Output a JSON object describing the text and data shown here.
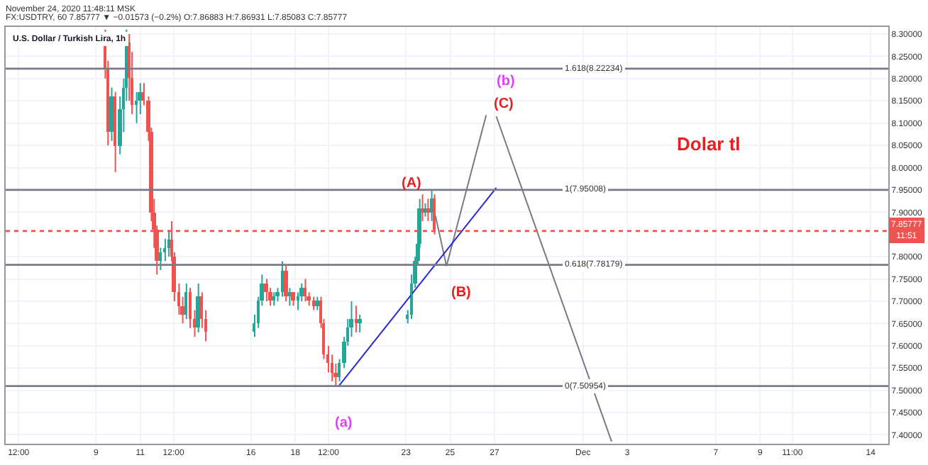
{
  "chart_data": {
    "type": "candlestick",
    "title": "U.S. Dollar / Turkish Lira, 1h",
    "x": [
      "2020-11-09T10:00",
      "2020-11-09T13:00",
      "2020-11-09T17:00",
      "2020-11-09T21:00",
      "2020-11-10T02:00",
      "2020-11-10T06:00",
      "2020-11-10T09:00",
      "2020-11-10T12:00",
      "2020-11-10T15:00",
      "2020-11-10T20:00",
      "2020-11-11T00:00",
      "2020-11-11T04:00",
      "2020-11-11T09:00",
      "2020-11-11T12:00",
      "2020-11-11T15:00",
      "2020-11-11T18:00",
      "2020-11-11T22:00",
      "2020-11-12T03:00",
      "2020-11-12T07:00",
      "2020-11-12T10:00",
      "2020-11-12T13:00",
      "2020-11-12T18:00",
      "2020-11-12T22:00",
      "2020-11-13T02:00",
      "2020-11-13T06:00",
      "2020-11-13T11:00",
      "2020-11-13T15:00",
      "2020-11-13T19:00",
      "2020-11-13T23:00",
      "2020-11-16T04:00",
      "2020-11-16T08:00",
      "2020-11-16T12:00",
      "2020-11-16T17:00",
      "2020-11-16T21:00",
      "2020-11-17T01:00",
      "2020-11-17T05:00",
      "2020-11-17T10:00",
      "2020-11-17T14:00",
      "2020-11-17T18:00",
      "2020-11-17T22:00",
      "2020-11-18T03:00",
      "2020-11-18T07:00",
      "2020-11-18T11:00",
      "2020-11-18T15:00",
      "2020-11-18T20:00",
      "2020-11-19T00:00",
      "2020-11-19T04:00",
      "2020-11-19T07:00",
      "2020-11-19T12:00",
      "2020-11-19T16:00",
      "2020-11-19T20:00",
      "2020-11-20T00:00",
      "2020-11-20T05:00",
      "2020-11-20T09:00",
      "2020-11-20T13:00",
      "2020-11-20T18:00",
      "2020-11-20T22:00",
      "2020-11-23T02:00",
      "2020-11-23T06:00",
      "2020-11-23T10:00",
      "2020-11-23T13:00",
      "2020-11-23T15:00",
      "2020-11-23T18:00",
      "2020-11-23T21:00",
      "2020-11-24T00:00",
      "2020-11-24T04:00",
      "2020-11-24T07:00"
    ],
    "ohlc": [
      [
        8.3,
        8.31,
        8.2,
        8.22
      ],
      [
        8.22,
        8.24,
        8.05,
        8.08
      ],
      [
        8.08,
        8.18,
        8.06,
        8.16
      ],
      [
        8.16,
        8.17,
        7.99,
        8.05
      ],
      [
        8.05,
        8.16,
        8.03,
        8.13
      ],
      [
        8.13,
        8.2,
        8.08,
        8.18
      ],
      [
        8.18,
        8.31,
        8.15,
        8.28
      ],
      [
        8.28,
        8.3,
        8.15,
        8.2
      ],
      [
        8.2,
        8.26,
        8.12,
        8.14
      ],
      [
        8.14,
        8.17,
        8.1,
        8.15
      ],
      [
        8.15,
        8.19,
        8.12,
        8.17
      ],
      [
        8.17,
        8.19,
        8.14,
        8.15
      ],
      [
        8.15,
        8.16,
        8.06,
        8.08
      ],
      [
        8.08,
        8.09,
        7.88,
        7.9
      ],
      [
        7.9,
        7.93,
        7.82,
        7.86
      ],
      [
        7.86,
        7.87,
        7.76,
        7.79
      ],
      [
        7.79,
        7.82,
        7.77,
        7.81
      ],
      [
        7.81,
        7.84,
        7.79,
        7.82
      ],
      [
        7.82,
        7.86,
        7.8,
        7.84
      ],
      [
        7.84,
        7.88,
        7.79,
        7.8
      ],
      [
        7.8,
        7.81,
        7.7,
        7.72
      ],
      [
        7.72,
        7.74,
        7.67,
        7.69
      ],
      [
        7.69,
        7.71,
        7.65,
        7.67
      ],
      [
        7.67,
        7.74,
        7.66,
        7.72
      ],
      [
        7.72,
        7.73,
        7.64,
        7.66
      ],
      [
        7.66,
        7.68,
        7.62,
        7.64
      ],
      [
        7.64,
        7.74,
        7.63,
        7.71
      ],
      [
        7.71,
        7.72,
        7.64,
        7.66
      ],
      [
        7.66,
        7.68,
        7.61,
        7.63
      ],
      [
        7.63,
        7.67,
        7.62,
        7.65
      ],
      [
        7.65,
        7.71,
        7.64,
        7.7
      ],
      [
        7.7,
        7.76,
        7.69,
        7.74
      ],
      [
        7.74,
        7.75,
        7.7,
        7.72
      ],
      [
        7.72,
        7.73,
        7.69,
        7.7
      ],
      [
        7.7,
        7.72,
        7.69,
        7.71
      ],
      [
        7.71,
        7.73,
        7.7,
        7.72
      ],
      [
        7.72,
        7.79,
        7.71,
        7.77
      ],
      [
        7.77,
        7.78,
        7.7,
        7.71
      ],
      [
        7.71,
        7.73,
        7.69,
        7.72
      ],
      [
        7.72,
        7.72,
        7.69,
        7.7
      ],
      [
        7.7,
        7.72,
        7.68,
        7.71
      ],
      [
        7.71,
        7.74,
        7.7,
        7.73
      ],
      [
        7.73,
        7.75,
        7.7,
        7.71
      ],
      [
        7.71,
        7.72,
        7.69,
        7.7
      ],
      [
        7.7,
        7.71,
        7.68,
        7.69
      ],
      [
        7.69,
        7.71,
        7.68,
        7.7
      ],
      [
        7.7,
        7.71,
        7.64,
        7.65
      ],
      [
        7.65,
        7.66,
        7.57,
        7.58
      ],
      [
        7.58,
        7.6,
        7.54,
        7.56
      ],
      [
        7.56,
        7.58,
        7.52,
        7.54
      ],
      [
        7.54,
        7.56,
        7.51,
        7.53
      ],
      [
        7.53,
        7.57,
        7.52,
        7.56
      ],
      [
        7.56,
        7.62,
        7.55,
        7.61
      ],
      [
        7.61,
        7.66,
        7.6,
        7.64
      ],
      [
        7.64,
        7.7,
        7.62,
        7.66
      ],
      [
        7.66,
        7.69,
        7.63,
        7.65
      ],
      [
        7.65,
        7.67,
        7.63,
        7.66
      ],
      [
        7.66,
        7.68,
        7.65,
        7.67
      ],
      [
        7.67,
        7.76,
        7.66,
        7.74
      ],
      [
        7.74,
        7.8,
        7.73,
        7.79
      ],
      [
        7.79,
        7.84,
        7.78,
        7.83
      ],
      [
        7.83,
        7.93,
        7.82,
        7.91
      ],
      [
        7.91,
        7.94,
        7.88,
        7.9
      ],
      [
        7.9,
        7.92,
        7.89,
        7.91
      ],
      [
        7.91,
        7.93,
        7.88,
        7.9
      ],
      [
        7.9,
        7.95,
        7.88,
        7.93
      ],
      [
        7.93,
        7.94,
        7.85,
        7.86
      ]
    ],
    "colors": [
      "#ef5350",
      "#ef5350",
      "#26a69a",
      "#ef5350",
      "#26a69a",
      "#26a69a",
      "#26a69a",
      "#ef5350",
      "#ef5350",
      "#26a69a",
      "#26a69a",
      "#ef5350",
      "#ef5350",
      "#ef5350",
      "#ef5350",
      "#ef5350",
      "#26a69a",
      "#26a69a",
      "#26a69a",
      "#ef5350",
      "#ef5350",
      "#ef5350",
      "#ef5350",
      "#26a69a",
      "#ef5350",
      "#ef5350",
      "#26a69a",
      "#ef5350",
      "#ef5350",
      "#26a69a",
      "#26a69a",
      "#26a69a",
      "#ef5350",
      "#ef5350",
      "#26a69a",
      "#26a69a",
      "#26a69a",
      "#ef5350",
      "#26a69a",
      "#ef5350",
      "#26a69a",
      "#26a69a",
      "#ef5350",
      "#ef5350",
      "#ef5350",
      "#26a69a",
      "#ef5350",
      "#ef5350",
      "#ef5350",
      "#ef5350",
      "#ef5350",
      "#26a69a",
      "#26a69a",
      "#26a69a",
      "#26a69a",
      "#ef5350",
      "#26a69a",
      "#26a69a",
      "#26a69a",
      "#26a69a",
      "#26a69a",
      "#26a69a",
      "#ef5350",
      "#26a69a",
      "#ef5350",
      "#26a69a",
      "#ef5350"
    ],
    "series": [
      {
        "type": "line",
        "color": "#787b86",
        "x": [
          "2020-11-24T08:00",
          "2020-11-24T20:00",
          "2020-11-26T15:00"
        ],
        "values": [
          7.892,
          7.779,
          8.118
        ]
      },
      {
        "type": "line",
        "color": "#787b86",
        "x": [
          "2020-11-27T02:00",
          "2020-12-02T07:00"
        ],
        "values": [
          8.115,
          7.385
        ]
      },
      {
        "type": "line",
        "color": "#2929d6",
        "x": [
          "2020-11-19T23:00",
          "2020-11-27T02:00"
        ],
        "values": [
          7.509,
          7.955
        ]
      }
    ],
    "ref_lines": [
      {
        "axis": "y",
        "value": 8.22234,
        "label": "1.618(8.22234)",
        "color": "#787b86",
        "line_style": "solid"
      },
      {
        "axis": "y",
        "value": 7.95008,
        "label": "1(7.95008)",
        "color": "#787b86",
        "line_style": "solid"
      },
      {
        "axis": "y",
        "value": 7.78179,
        "label": "0.618(7.78179)",
        "color": "#787b86",
        "line_style": "solid"
      },
      {
        "axis": "y",
        "value": 7.50954,
        "label": "0(7.50954)",
        "color": "#787b86",
        "line_style": "solid"
      },
      {
        "axis": "y",
        "value": 7.85777,
        "label": "7.85777\n11:51",
        "color": "#ef5350",
        "line_style": "dotted"
      }
    ],
    "annotations": [
      "November 24, 2020 11:48:11 MSK",
      "FX:USDTRY, 60 7.85777 ▼ −0.01573 (−0.2%) O:7.86883 H:7.86931 L:7.85083 C:7.85777",
      "Dolar tl",
      "(A)",
      "(B)",
      "(C)",
      "(b)",
      "(a)"
    ],
    "xlim": [
      "2020-11-04T22:00",
      "2020-12-14T19:00"
    ],
    "xticks": [
      {
        "value": "2020-11-05T12:00",
        "label": "12:00"
      },
      {
        "value": "2020-11-09",
        "label": "9"
      },
      {
        "value": "2020-11-11",
        "label": "11"
      },
      {
        "value": "2020-11-12T12:00",
        "label": "12:00"
      },
      {
        "value": "2020-11-16",
        "label": "16"
      },
      {
        "value": "2020-11-18",
        "label": "18"
      },
      {
        "value": "2020-11-19T12:00",
        "label": "12:00"
      },
      {
        "value": "2020-11-23",
        "label": "23"
      },
      {
        "value": "2020-11-25",
        "label": "25"
      },
      {
        "value": "2020-11-27",
        "label": "27"
      },
      {
        "value": "2020-12-01",
        "label": "Dec"
      },
      {
        "value": "2020-12-03",
        "label": "3"
      },
      {
        "value": "2020-12-07",
        "label": "7"
      },
      {
        "value": "2020-12-09",
        "label": "9"
      },
      {
        "value": "2020-12-10T11:00",
        "label": "11:00"
      },
      {
        "value": "2020-12-14",
        "label": "14"
      }
    ],
    "ylim": [
      7.38,
      8.316
    ],
    "yticks": [
      {
        "value": 7.4,
        "label": "7.40000"
      },
      {
        "value": 7.45,
        "label": "7.45000"
      },
      {
        "value": 7.5,
        "label": "7.50000"
      },
      {
        "value": 7.55,
        "label": "7.55000"
      },
      {
        "value": 7.6,
        "label": "7.60000"
      },
      {
        "value": 7.65,
        "label": "7.65000"
      },
      {
        "value": 7.7,
        "label": "7.70000"
      },
      {
        "value": 7.75,
        "label": "7.75000"
      },
      {
        "value": 7.8,
        "label": "7.80000"
      },
      {
        "value": 7.9,
        "label": "7.90000"
      },
      {
        "value": 7.95,
        "label": "7.95000"
      },
      {
        "value": 8.0,
        "label": "8.00000"
      },
      {
        "value": 8.05,
        "label": "8.05000"
      },
      {
        "value": 8.1,
        "label": "8.10000"
      },
      {
        "value": 8.15,
        "label": "8.15000"
      },
      {
        "value": 8.2,
        "label": "8.20000"
      },
      {
        "value": 8.25,
        "label": "8.25000"
      },
      {
        "value": 8.3,
        "label": "8.30000"
      }
    ],
    "grid": true
  }
}
